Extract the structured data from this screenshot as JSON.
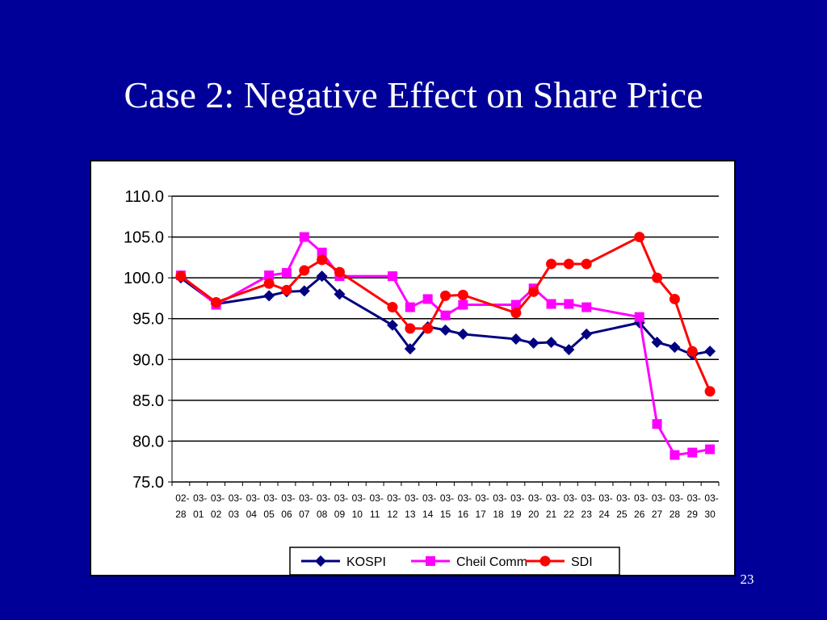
{
  "slide": {
    "title": "Case 2: Negative Effect on Share Price",
    "page_number": "23"
  },
  "chart_data": {
    "type": "line",
    "title": "",
    "xlabel": "",
    "ylabel": "",
    "ylim": [
      75.0,
      110.0
    ],
    "ytick_labels": [
      "110.0",
      "105.0",
      "100.0",
      "95.0",
      "90.0",
      "85.0",
      "80.0",
      "75.0"
    ],
    "grid": "horizontal",
    "legend_position": "bottom",
    "categories": [
      "02-28",
      "03-01",
      "03-02",
      "03-03",
      "03-04",
      "03-05",
      "03-06",
      "03-07",
      "03-08",
      "03-09",
      "03-10",
      "03-11",
      "03-12",
      "03-13",
      "03-14",
      "03-15",
      "03-16",
      "03-17",
      "03-18",
      "03-19",
      "03-20",
      "03-21",
      "03-22",
      "03-23",
      "03-24",
      "03-25",
      "03-26",
      "03-27",
      "03-28",
      "03-29",
      "03-30"
    ],
    "series": [
      {
        "name": "KOSPI",
        "color": "#000080",
        "marker": "diamond",
        "values": [
          100.0,
          null,
          96.8,
          null,
          null,
          97.8,
          98.3,
          98.4,
          100.2,
          98.0,
          null,
          null,
          94.2,
          91.3,
          94.0,
          93.6,
          93.1,
          null,
          null,
          92.5,
          92.0,
          92.1,
          91.2,
          93.1,
          null,
          null,
          94.5,
          92.1,
          91.5,
          90.6,
          91.0
        ]
      },
      {
        "name": "Cheil Comm",
        "color": "#ff00ff",
        "marker": "square",
        "values": [
          100.3,
          null,
          96.7,
          null,
          null,
          100.3,
          100.6,
          105.0,
          103.1,
          100.2,
          null,
          null,
          100.2,
          96.4,
          97.4,
          95.4,
          96.7,
          null,
          null,
          96.7,
          98.7,
          96.8,
          96.8,
          96.4,
          null,
          null,
          95.2,
          82.1,
          78.3,
          78.6,
          79.0
        ]
      },
      {
        "name": "SDI",
        "color": "#ff0000",
        "marker": "circle",
        "values": [
          100.2,
          null,
          97.0,
          null,
          null,
          99.3,
          98.5,
          100.9,
          102.2,
          100.7,
          null,
          null,
          96.4,
          93.8,
          93.8,
          97.8,
          97.9,
          null,
          null,
          95.7,
          98.3,
          101.7,
          101.7,
          101.7,
          null,
          null,
          105.0,
          100.0,
          97.4,
          91.0,
          86.1
        ]
      }
    ]
  }
}
